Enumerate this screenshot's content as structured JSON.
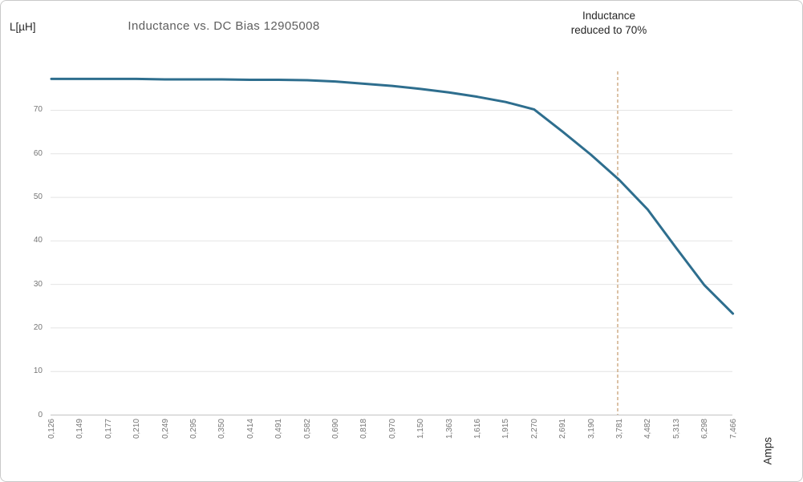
{
  "header": {
    "y_axis_unit_label": "L[µH]"
  },
  "annotation": {
    "line1": "Inductance",
    "line2": "reduced to 70%"
  },
  "chart_data": {
    "type": "line",
    "title": "Inductance vs. DC Bias 12905008",
    "xlabel": "Amps",
    "ylabel": "L[µH]",
    "categories": [
      "0,126",
      "0,149",
      "0,177",
      "0,210",
      "0,249",
      "0,295",
      "0,350",
      "0,414",
      "0,491",
      "0,582",
      "0,690",
      "0,818",
      "0,970",
      "1,150",
      "1,363",
      "1,616",
      "1,915",
      "2,270",
      "2,691",
      "3,190",
      "3,781",
      "4,482",
      "5,313",
      "6,298",
      "7,466"
    ],
    "series": [
      {
        "name": "Inductance",
        "color": "#2e6e8e",
        "values": [
          77.2,
          77.2,
          77.2,
          77.2,
          77.1,
          77.1,
          77.1,
          77.0,
          77.0,
          76.9,
          76.6,
          76.1,
          75.6,
          74.9,
          74.1,
          73.1,
          71.9,
          70.2,
          65.1,
          59.8,
          54.0,
          47.2,
          38.4,
          29.8,
          23.3
        ]
      }
    ],
    "yticks": [
      0,
      10,
      20,
      30,
      40,
      50,
      60,
      70
    ],
    "ylim": [
      0,
      80
    ],
    "grid": true,
    "legend": "none",
    "annotation": {
      "text": "Inductance reduced to 70%",
      "at_category": "3,781",
      "line_style": "dashed",
      "line_color": "#c49a6b"
    },
    "grid_color": "#e4e4e4",
    "axis_line_color": "#c2c2c2"
  }
}
